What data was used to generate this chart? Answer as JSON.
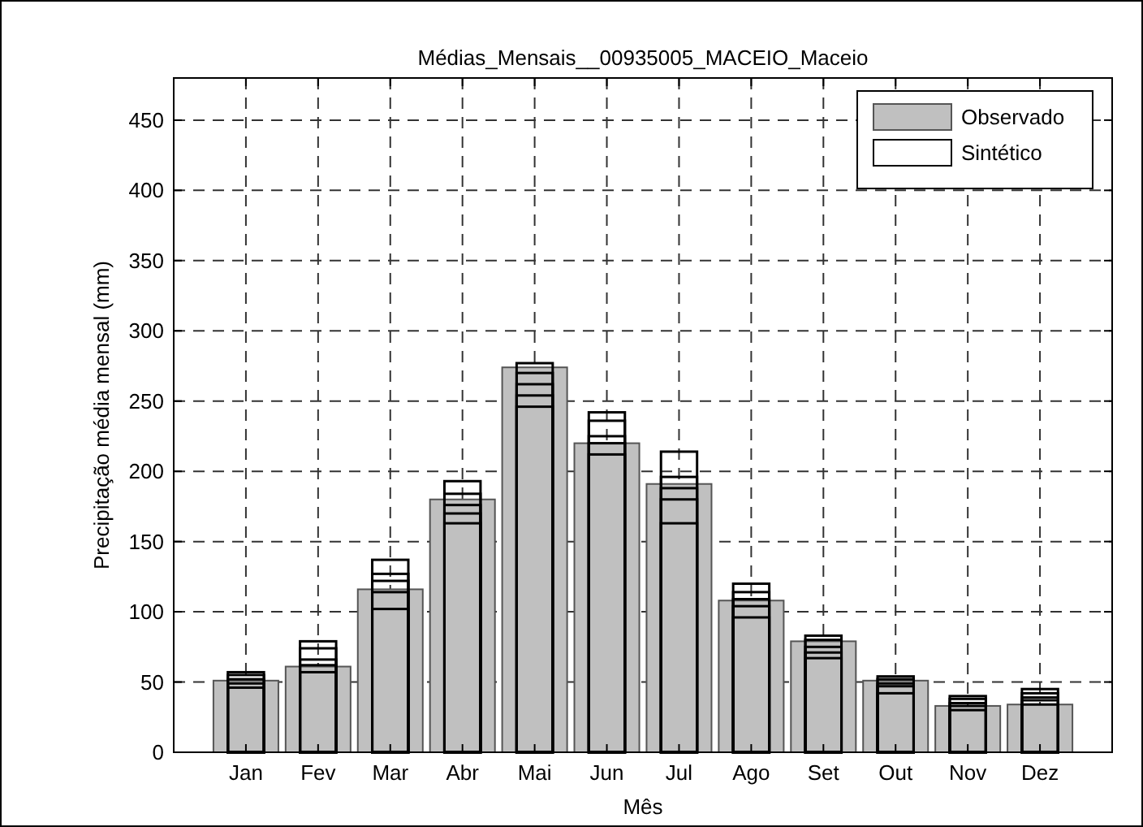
{
  "chart_data": {
    "type": "bar",
    "title": "Médias_Mensais__00935005_MACEIO_Maceio",
    "xlabel": "Mês",
    "ylabel": "Precipitação média mensal (mm)",
    "categories": [
      "Jan",
      "Fev",
      "Mar",
      "Abr",
      "Mai",
      "Jun",
      "Jul",
      "Ago",
      "Set",
      "Out",
      "Nov",
      "Dez"
    ],
    "series": [
      {
        "name": "Observado",
        "color": "#c0c0c0",
        "values": [
          51,
          61,
          116,
          180,
          274,
          220,
          191,
          108,
          79,
          51,
          33,
          34
        ]
      },
      {
        "name": "Sintético",
        "color": "#000000",
        "values": [
          57,
          79,
          137,
          193,
          277,
          242,
          214,
          120,
          83,
          54,
          40,
          45
        ]
      },
      {
        "color": "#000000",
        "values": [
          55,
          74,
          127,
          184,
          270,
          236,
          196,
          114,
          80,
          52,
          38,
          42
        ]
      },
      {
        "color": "#000000",
        "values": [
          52,
          66,
          122,
          176,
          262,
          225,
          188,
          109,
          75,
          49,
          35,
          39
        ]
      },
      {
        "color": "#000000",
        "values": [
          49,
          62,
          114,
          170,
          254,
          220,
          180,
          104,
          71,
          47,
          33,
          37
        ]
      },
      {
        "color": "#000000",
        "values": [
          46,
          57,
          102,
          163,
          246,
          212,
          163,
          96,
          67,
          42,
          30,
          34
        ]
      }
    ],
    "ylim": [
      0,
      480
    ],
    "yticks": [
      0,
      50,
      100,
      150,
      200,
      250,
      300,
      350,
      400,
      450
    ],
    "grid": true,
    "legend": "top right"
  }
}
